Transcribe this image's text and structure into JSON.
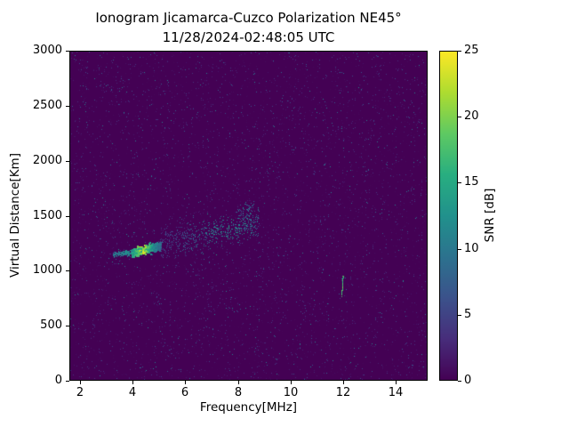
{
  "figure": {
    "background": "#ffffff"
  },
  "chart_data": {
    "type": "heatmap",
    "title": "Ionogram Jicamarca-Cuzco Polarization NE45°",
    "subtitle": "11/28/2024-02:48:05 UTC",
    "xlabel": "Frequency[MHz]",
    "ylabel": "Virtual Distance[Km]",
    "colorbar_label": "SNR [dB]",
    "xlim": [
      1.6,
      15.2
    ],
    "ylim": [
      0,
      3000
    ],
    "clim": [
      0,
      25
    ],
    "xticks": [
      2,
      4,
      6,
      8,
      10,
      12,
      14
    ],
    "yticks": [
      0,
      500,
      1000,
      1500,
      2000,
      2500,
      3000
    ],
    "cticks": [
      0,
      5,
      10,
      15,
      20,
      25
    ],
    "grid": false,
    "legend_position": "colorbar-right",
    "background_snr": 0,
    "colormap": {
      "name": "viridis",
      "stops": [
        {
          "t": 0.0,
          "c": "#440154"
        },
        {
          "t": 0.125,
          "c": "#472d7b"
        },
        {
          "t": 0.25,
          "c": "#3b528b"
        },
        {
          "t": 0.375,
          "c": "#2c728e"
        },
        {
          "t": 0.5,
          "c": "#21918c"
        },
        {
          "t": 0.625,
          "c": "#28ae80"
        },
        {
          "t": 0.75,
          "c": "#5ec962"
        },
        {
          "t": 0.875,
          "c": "#addc30"
        },
        {
          "t": 1.0,
          "c": "#fde725"
        }
      ]
    },
    "noise": {
      "density": 0.042,
      "snr_mean": 2.6,
      "snr_max": 11
    },
    "echo_features": [
      {
        "name": "e-region-lead-trace",
        "f_start": 3.25,
        "f_end": 3.95,
        "h_start": 1150,
        "h_end": 1168,
        "h_spread": 12,
        "count": 260,
        "snr_base": 6,
        "snr_peak": 8,
        "f_peak": 3.8,
        "peak_width": 0.5,
        "dot": 1
      },
      {
        "name": "main-echo-trace",
        "f_start": 3.95,
        "f_end": 5.05,
        "h_start": 1168,
        "h_end": 1235,
        "h_spread": 16,
        "count": 700,
        "snr_base": 8,
        "snr_peak": 17,
        "f_peak": 4.35,
        "peak_width": 0.28,
        "dot": 2
      },
      {
        "name": "diffuse-f-scatter",
        "f_start": 5.05,
        "f_end": 8.8,
        "h_start": 1235,
        "h_end": 1445,
        "h_spread": 70,
        "count": 600,
        "snr_base": 4,
        "snr_peak": 10,
        "f_peak": 7.6,
        "peak_width": 1.2,
        "dot": 1
      },
      {
        "name": "upper-scatter-specks",
        "f_start": 8.0,
        "f_end": 8.6,
        "h_start": 1500,
        "h_end": 1620,
        "h_spread": 40,
        "count": 55,
        "snr_base": 4,
        "snr_peak": 6,
        "f_peak": 8.3,
        "peak_width": 0.4,
        "dot": 1
      },
      {
        "name": "interference-line",
        "f_start": 11.93,
        "f_end": 11.98,
        "h_start": 775,
        "h_end": 955,
        "h_spread": 8,
        "count": 90,
        "snr_base": 11,
        "snr_peak": 8,
        "f_peak": 11.95,
        "peak_width": 0.1,
        "dot": 1
      }
    ]
  }
}
